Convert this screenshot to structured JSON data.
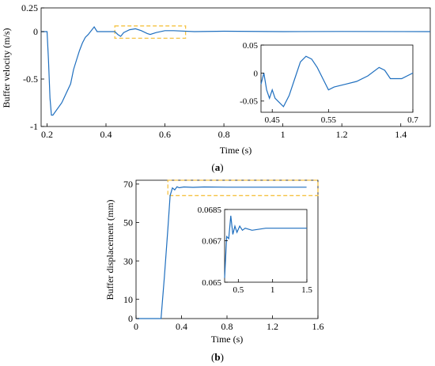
{
  "colors": {
    "line": "#1f6fbf",
    "box": "#f5c242",
    "axis": "#000000"
  },
  "chart_data": [
    {
      "panel": "(a)",
      "type": "line",
      "xlabel": "Time (s)",
      "ylabel": "Buffer velocity (m/s)",
      "xlim": [
        0.18,
        1.5
      ],
      "ylim": [
        -1,
        0.25
      ],
      "xticks": [
        "0.2",
        "0.4",
        "0.6",
        "0.8",
        "1",
        "1.2",
        "1.4"
      ],
      "yticks": [
        "0.25",
        "0",
        "-0.5",
        "-1"
      ],
      "highlight_box_x": [
        0.43,
        0.67
      ],
      "highlight_box_y": [
        -0.07,
        0.06
      ],
      "series": [
        {
          "points": [
            [
              0.18,
              0
            ],
            [
              0.2,
              0
            ],
            [
              0.205,
              -0.3
            ],
            [
              0.21,
              -0.7
            ],
            [
              0.215,
              -0.88
            ],
            [
              0.22,
              -0.88
            ],
            [
              0.25,
              -0.75
            ],
            [
              0.28,
              -0.55
            ],
            [
              0.29,
              -0.4
            ],
            [
              0.3,
              -0.3
            ],
            [
              0.31,
              -0.2
            ],
            [
              0.32,
              -0.12
            ],
            [
              0.33,
              -0.06
            ],
            [
              0.34,
              -0.03
            ],
            [
              0.36,
              0.05
            ],
            [
              0.37,
              0
            ],
            [
              0.4,
              0
            ],
            [
              0.43,
              0
            ],
            [
              0.44,
              -0.03
            ],
            [
              0.45,
              -0.05
            ],
            [
              0.46,
              -0.01
            ],
            [
              0.48,
              0.02
            ],
            [
              0.5,
              0.03
            ],
            [
              0.52,
              0.01
            ],
            [
              0.54,
              -0.02
            ],
            [
              0.55,
              -0.03
            ],
            [
              0.57,
              -0.01
            ],
            [
              0.6,
              0.01
            ],
            [
              0.63,
              0.01
            ],
            [
              0.7,
              0
            ],
            [
              0.8,
              0.004
            ],
            [
              1.0,
              0
            ],
            [
              1.2,
              0.002
            ],
            [
              1.5,
              0
            ]
          ]
        }
      ],
      "inset": {
        "xlim": [
          0.43,
          0.7
        ],
        "ylim": [
          -0.07,
          0.05
        ],
        "xticks": [
          "0.45",
          "0.55",
          "0.7"
        ],
        "yticks": [
          "0.05",
          "0",
          "-0.05"
        ],
        "points": [
          [
            0.43,
            -0.02
          ],
          [
            0.435,
            0.0
          ],
          [
            0.44,
            -0.03
          ],
          [
            0.445,
            -0.045
          ],
          [
            0.45,
            -0.03
          ],
          [
            0.455,
            -0.045
          ],
          [
            0.46,
            -0.05
          ],
          [
            0.47,
            -0.06
          ],
          [
            0.48,
            -0.04
          ],
          [
            0.49,
            -0.01
          ],
          [
            0.5,
            0.02
          ],
          [
            0.51,
            0.03
          ],
          [
            0.52,
            0.025
          ],
          [
            0.53,
            0.01
          ],
          [
            0.54,
            -0.01
          ],
          [
            0.55,
            -0.03
          ],
          [
            0.56,
            -0.025
          ],
          [
            0.58,
            -0.02
          ],
          [
            0.6,
            -0.015
          ],
          [
            0.62,
            -0.005
          ],
          [
            0.64,
            0.01
          ],
          [
            0.65,
            0.005
          ],
          [
            0.66,
            -0.01
          ],
          [
            0.68,
            -0.01
          ],
          [
            0.7,
            0.0
          ]
        ]
      }
    },
    {
      "panel": "(b)",
      "type": "line",
      "xlabel": "Time (s)",
      "ylabel": "Buffer displacement (mm)",
      "xlim": [
        0,
        1.6
      ],
      "ylim": [
        0,
        72
      ],
      "xticks": [
        "0",
        "0.4",
        "0.8",
        "1.2",
        "1.6"
      ],
      "yticks": [
        "70",
        "50",
        "30",
        "10",
        "0"
      ],
      "highlight_box_x": [
        0.28,
        1.6
      ],
      "highlight_box_y": [
        64,
        72
      ],
      "series": [
        {
          "points": [
            [
              0,
              0
            ],
            [
              0.22,
              0
            ],
            [
              0.25,
              22
            ],
            [
              0.28,
              47
            ],
            [
              0.3,
              64
            ],
            [
              0.32,
              68
            ],
            [
              0.34,
              67
            ],
            [
              0.36,
              68.6
            ],
            [
              0.38,
              68.1
            ],
            [
              0.42,
              68.5
            ],
            [
              0.5,
              68.3
            ],
            [
              0.6,
              68.5
            ],
            [
              0.8,
              68.4
            ],
            [
              1.0,
              68.4
            ],
            [
              1.5,
              68.4
            ]
          ]
        }
      ],
      "inset": {
        "xlim": [
          0.3,
          1.5
        ],
        "ylim": [
          0.065,
          0.0685
        ],
        "xticks": [
          "0.5",
          "1",
          "1.5"
        ],
        "yticks": [
          "0.0685",
          "0.067",
          "0.065"
        ],
        "points": [
          [
            0.3,
            0.0652
          ],
          [
            0.33,
            0.0672
          ],
          [
            0.36,
            0.0671
          ],
          [
            0.39,
            0.0682
          ],
          [
            0.42,
            0.0673
          ],
          [
            0.45,
            0.0677
          ],
          [
            0.48,
            0.0674
          ],
          [
            0.52,
            0.0677
          ],
          [
            0.56,
            0.0675
          ],
          [
            0.6,
            0.0676
          ],
          [
            0.7,
            0.0675
          ],
          [
            0.9,
            0.0676
          ],
          [
            1.5,
            0.0676
          ]
        ]
      }
    }
  ]
}
